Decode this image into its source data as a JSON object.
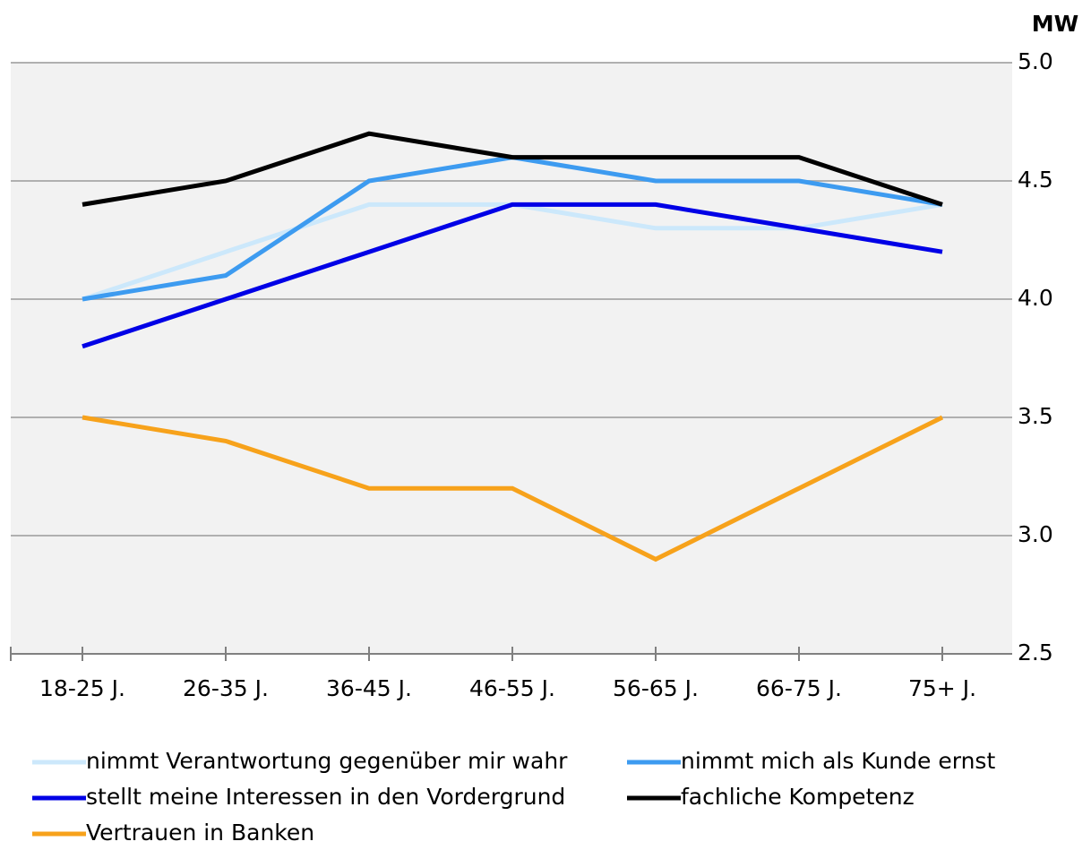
{
  "chart_data": {
    "type": "line",
    "y_axis_label": "MW",
    "categories": [
      "18-25 J.",
      "26-35 J.",
      "36-45 J.",
      "46-55 J.",
      "56-65 J.",
      "66-75 J.",
      "75+ J."
    ],
    "series": [
      {
        "name": "nimmt Verantwortung gegenüber mir wahr",
        "color": "#cce8fb",
        "values": [
          4.0,
          4.2,
          4.4,
          4.4,
          4.3,
          4.3,
          4.4
        ]
      },
      {
        "name": "nimmt mich als Kunde ernst",
        "color": "#3d9bf0",
        "values": [
          4.0,
          4.1,
          4.5,
          4.6,
          4.5,
          4.5,
          4.4
        ]
      },
      {
        "name": "stellt meine Interessen in den Vordergrund",
        "color": "#0000e6",
        "values": [
          3.8,
          4.0,
          4.2,
          4.4,
          4.4,
          4.3,
          4.2
        ]
      },
      {
        "name": "fachliche Kompetenz",
        "color": "#000000",
        "values": [
          4.4,
          4.5,
          4.7,
          4.6,
          4.6,
          4.6,
          4.4
        ]
      },
      {
        "name": "Vertrauen in Banken",
        "color": "#f7a21b",
        "values": [
          3.5,
          3.4,
          3.2,
          3.2,
          2.9,
          3.2,
          3.5
        ]
      }
    ],
    "ylim": [
      2.5,
      5.0
    ],
    "yticks": [
      {
        "value": 2.5,
        "label": "2.5"
      },
      {
        "value": 3.0,
        "label": "3.0"
      },
      {
        "value": 3.5,
        "label": "3.5"
      },
      {
        "value": 4.0,
        "label": "4.0"
      },
      {
        "value": 4.5,
        "label": "4.5"
      },
      {
        "value": 5.0,
        "label": "5.0"
      }
    ],
    "grid": true
  }
}
